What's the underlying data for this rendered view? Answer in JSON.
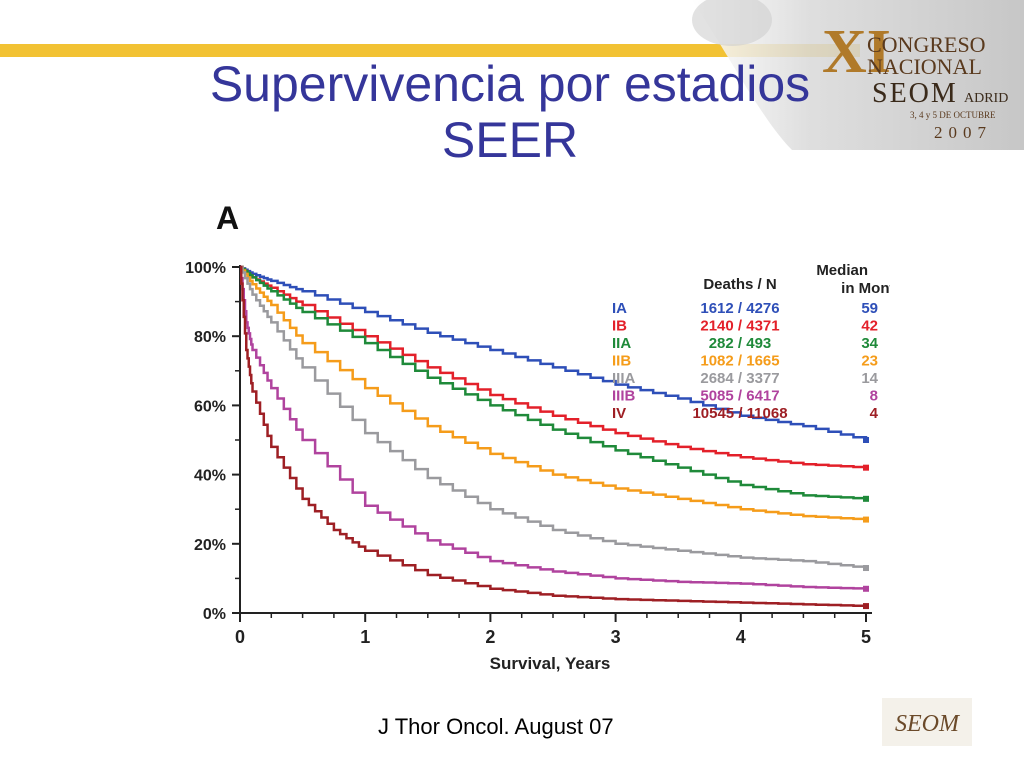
{
  "slide": {
    "title_line1": "Supervivencia por estadios",
    "title_line2": "SEER",
    "footer": "J Thor Oncol. August 07"
  },
  "logo": {
    "roman": "XI",
    "line1": "CONGRESO",
    "line2": "NACIONAL",
    "brand": "SEOM",
    "city": "ADRID",
    "dates": "3, 4 y 5 DE OCTUBRE",
    "year": "2007",
    "bottom_mark": "SEOM"
  },
  "colors": {
    "title": "#35369a",
    "accent_bar": "#f2c233"
  },
  "chart_data": {
    "type": "line",
    "panel_label": "A",
    "xlabel": "Survival, Years",
    "ylabel": "",
    "xlim": [
      0,
      5
    ],
    "ylim": [
      0,
      100
    ],
    "x_ticks": [
      "0",
      "1",
      "2",
      "3",
      "4",
      "5"
    ],
    "y_ticks": [
      "0%",
      "20%",
      "40%",
      "60%",
      "80%",
      "100%"
    ],
    "legend": {
      "header_deaths": "Deaths / N",
      "header_median_1": "Median",
      "header_median_2": "in Months",
      "placement": "top-right"
    },
    "series": [
      {
        "name": "IA",
        "deaths_n": "1612 / 4276",
        "median": "59",
        "color": "#2e4fb8",
        "x": [
          0,
          0.1,
          0.25,
          0.5,
          1,
          1.5,
          2,
          2.5,
          3,
          3.5,
          4,
          4.5,
          5
        ],
        "y": [
          100,
          98,
          96,
          93,
          87,
          81,
          76,
          71,
          66,
          62,
          57,
          54,
          50
        ]
      },
      {
        "name": "IB",
        "deaths_n": "2140 / 4371",
        "median": "42",
        "color": "#e3202a",
        "x": [
          0,
          0.1,
          0.25,
          0.5,
          1,
          1.5,
          2,
          2.5,
          3,
          3.5,
          4,
          4.5,
          5
        ],
        "y": [
          100,
          97,
          94,
          89,
          80,
          71,
          63,
          57,
          52,
          48,
          45,
          43,
          42
        ]
      },
      {
        "name": "IIA",
        "deaths_n": "282 / 493",
        "median": "34",
        "color": "#1f8a3a",
        "x": [
          0,
          0.1,
          0.25,
          0.5,
          1,
          1.5,
          2,
          2.5,
          3,
          3.5,
          4,
          4.5,
          5
        ],
        "y": [
          100,
          97,
          93,
          87,
          78,
          68,
          60,
          53,
          47,
          42,
          37,
          34,
          33
        ]
      },
      {
        "name": "IIB",
        "deaths_n": "1082 / 1665",
        "median": "23",
        "color": "#f59c1a",
        "x": [
          0,
          0.1,
          0.25,
          0.5,
          1,
          1.5,
          2,
          2.5,
          3,
          3.5,
          4,
          4.5,
          5
        ],
        "y": [
          100,
          95,
          89,
          78,
          65,
          54,
          46,
          40,
          36,
          33,
          30,
          28,
          27
        ]
      },
      {
        "name": "IIIA",
        "deaths_n": "2684 / 3377",
        "median": "14",
        "color": "#9a9a9e",
        "x": [
          0,
          0.1,
          0.25,
          0.5,
          1,
          1.5,
          2,
          2.5,
          3,
          3.5,
          4,
          4.5,
          5
        ],
        "y": [
          100,
          92,
          84,
          71,
          52,
          39,
          30,
          24,
          20,
          18,
          16,
          15,
          13
        ]
      },
      {
        "name": "IIIB",
        "deaths_n": "5085 / 6417",
        "median": "8",
        "color": "#b0439e",
        "x": [
          0,
          0.05,
          0.1,
          0.25,
          0.5,
          1,
          1.5,
          2,
          2.5,
          3,
          3.5,
          4,
          4.5,
          5
        ],
        "y": [
          100,
          84,
          76,
          65,
          50,
          31,
          21,
          15,
          12,
          10,
          9,
          8.5,
          7.5,
          7
        ]
      },
      {
        "name": "IV",
        "deaths_n": "10545 / 11068",
        "median": "4",
        "color": "#9e1f24",
        "x": [
          0,
          0.05,
          0.1,
          0.25,
          0.5,
          0.75,
          1,
          1.5,
          2,
          2.5,
          3,
          3.5,
          4,
          4.5,
          5
        ],
        "y": [
          100,
          76,
          64,
          48,
          33,
          24,
          18,
          11,
          7,
          5,
          4,
          3.5,
          3,
          2.5,
          2
        ]
      }
    ]
  }
}
